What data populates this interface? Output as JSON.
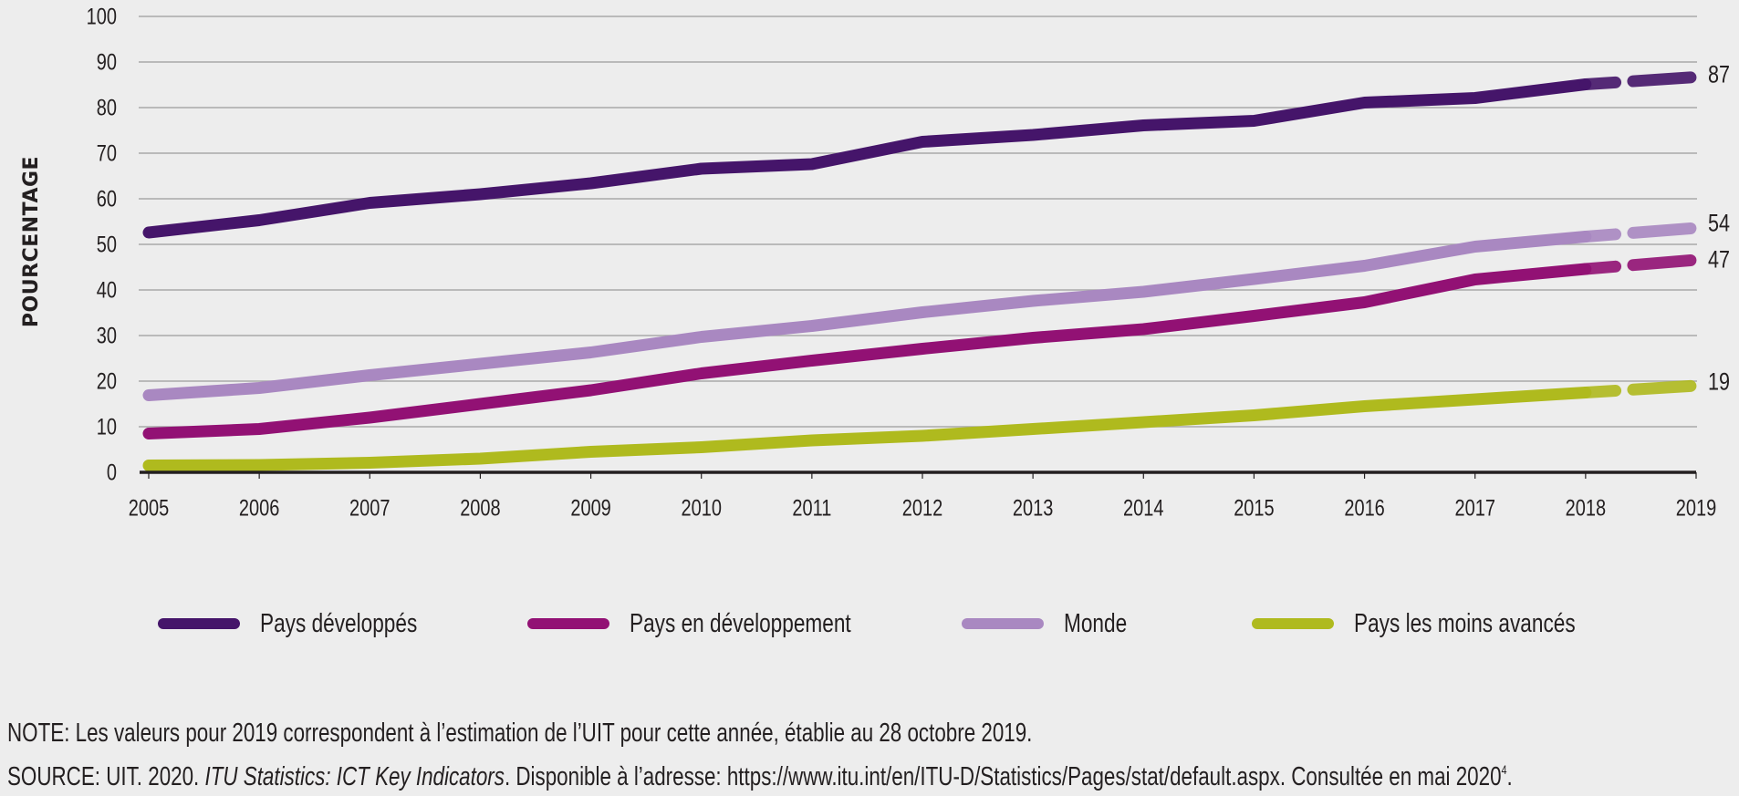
{
  "chart_data": {
    "type": "line",
    "title": "",
    "xlabel": "",
    "ylabel": "POURCENTAGE",
    "ylim": [
      0,
      100
    ],
    "yticks": [
      "0",
      "10",
      "20",
      "30",
      "40",
      "50",
      "60",
      "70",
      "80",
      "90",
      "100"
    ],
    "grid": true,
    "x": [
      2005,
      2006,
      2007,
      2008,
      2009,
      2010,
      2011,
      2012,
      2013,
      2014,
      2015,
      2016,
      2017,
      2018,
      2019
    ],
    "xticks": [
      "2005",
      "2006",
      "2007",
      "2008",
      "2009",
      "2010",
      "2011",
      "2012",
      "2013",
      "2014",
      "2015",
      "2016",
      "2017",
      "2018",
      "2019"
    ],
    "estimate_from": 2018,
    "series": [
      {
        "name": "Pays développés",
        "color": "#45156a",
        "values": [
          52.6,
          55.3,
          59.1,
          61.0,
          63.4,
          66.6,
          67.6,
          72.5,
          74.0,
          76.1,
          77.1,
          81.1,
          82.1,
          85.1,
          86.7
        ],
        "end_label": "87"
      },
      {
        "name": "Pays en développement",
        "color": "#921174",
        "values": [
          8.5,
          9.5,
          12.0,
          15.0,
          18.0,
          21.7,
          24.5,
          27.1,
          29.5,
          31.4,
          34.3,
          37.3,
          42.3,
          44.6,
          46.6
        ],
        "end_label": "47"
      },
      {
        "name": "Monde",
        "color": "#a988c1",
        "values": [
          16.9,
          18.5,
          21.3,
          23.8,
          26.3,
          29.7,
          32.1,
          35.1,
          37.6,
          39.6,
          42.4,
          45.3,
          49.5,
          51.7,
          53.6
        ],
        "end_label": "54"
      },
      {
        "name": "Pays les moins avancés",
        "color": "#afba1e",
        "values": [
          1.5,
          1.6,
          2.1,
          3.0,
          4.5,
          5.5,
          7.0,
          8.0,
          9.5,
          11.0,
          12.5,
          14.5,
          16.0,
          17.5,
          19.0
        ],
        "end_label": "19"
      }
    ],
    "legend": {
      "position": "bottom",
      "entries": [
        "Pays développés",
        "Pays en développement",
        "Monde",
        "Pays les moins avancés"
      ]
    }
  },
  "footer": {
    "note": "NOTE: Les valeurs pour 2019 correspondent à l’estimation de l’UIT pour cette année, établie au 28 octobre 2019.",
    "source_prefix": "SOURCE: UIT. 2020. ",
    "source_title": "ITU Statistics: ICT Key Indicators",
    "source_suffix": ". Disponible à l’adresse: https://www.itu.int/en/ITU-D/Statistics/Pages/stat/default.aspx. Consultée en mai 2020",
    "source_footnote": "4",
    "source_end": "."
  }
}
